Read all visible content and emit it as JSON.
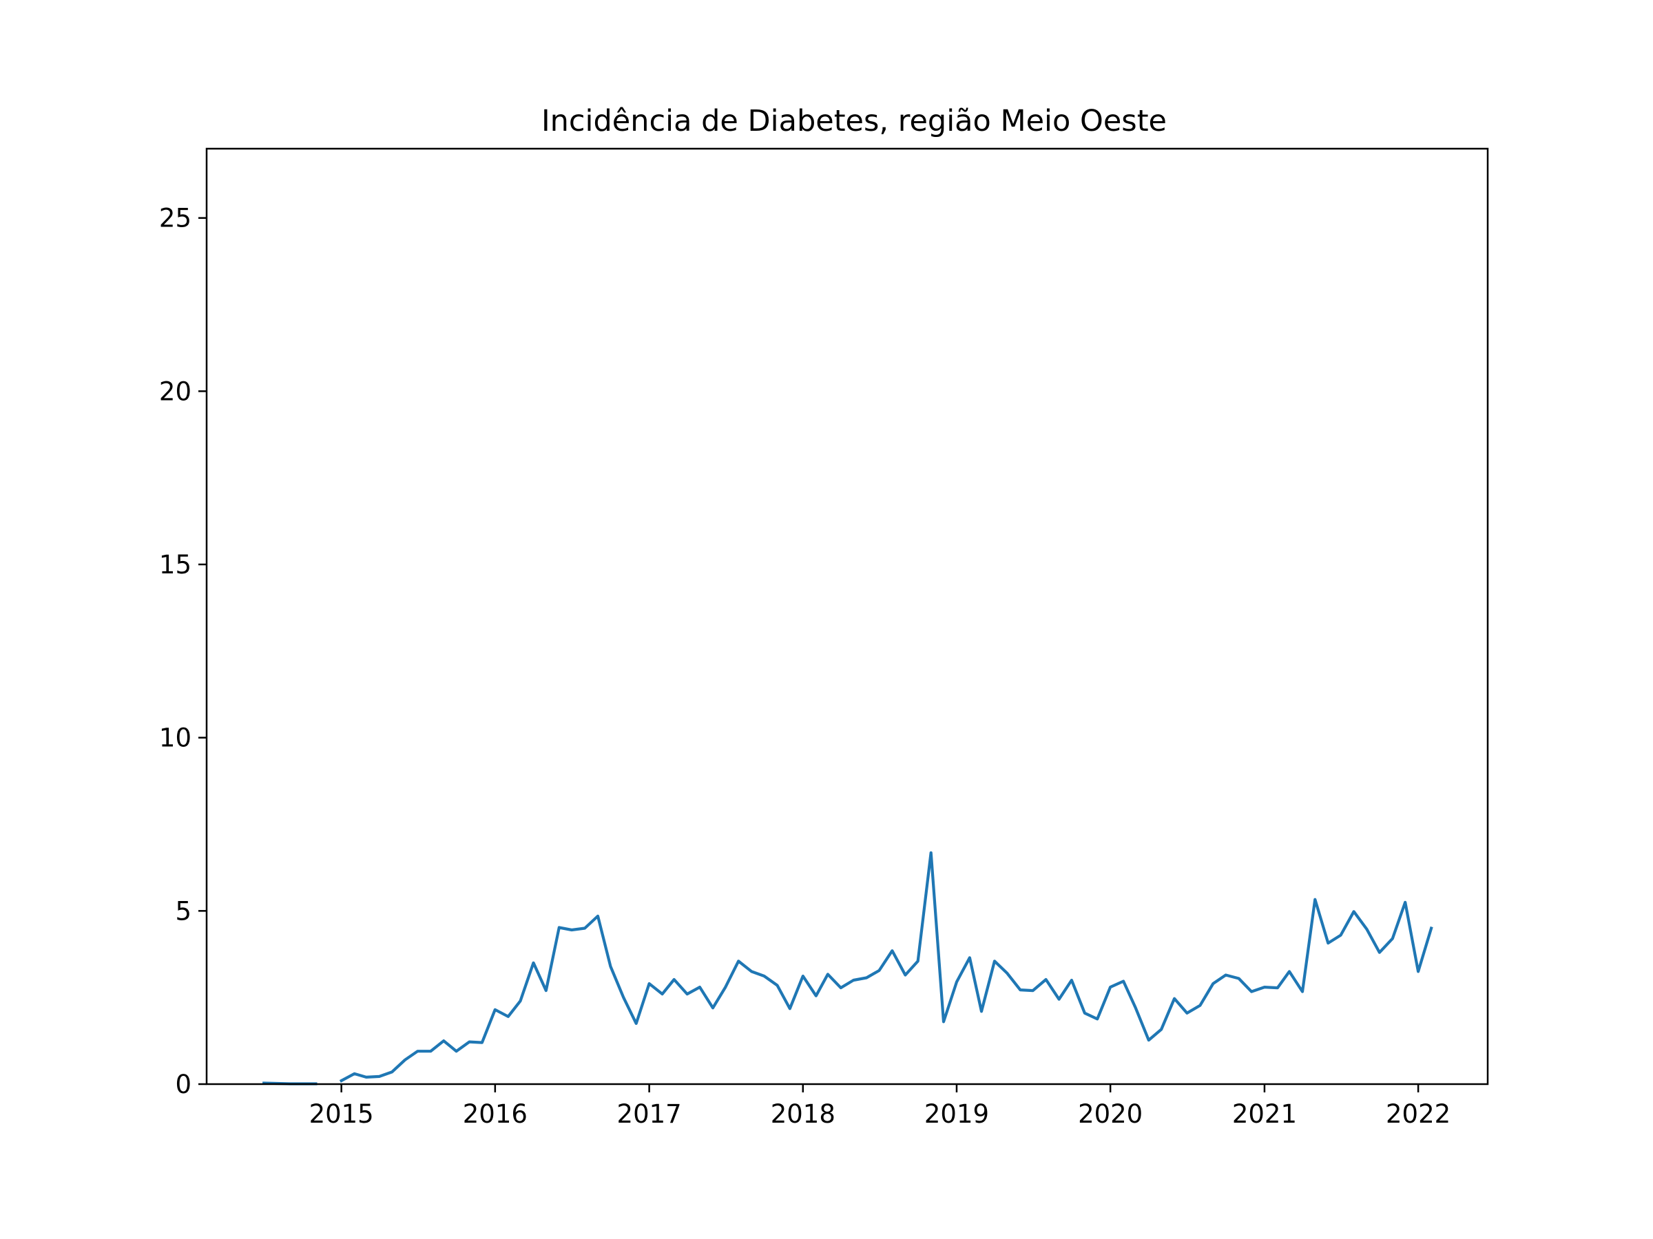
{
  "chart_data": {
    "type": "line",
    "title": "Incidência de Diabetes, região Meio Oeste",
    "xlabel": "",
    "ylabel": "",
    "xlim": [
      "2014-02-15",
      "2022-06-15"
    ],
    "ylim": [
      0,
      27
    ],
    "xticks": [
      "2015",
      "2016",
      "2017",
      "2018",
      "2019",
      "2020",
      "2021",
      "2022"
    ],
    "yticks": [
      0,
      5,
      10,
      15,
      20,
      25
    ],
    "grid": false,
    "line_color": "#1f77b4",
    "series": [
      {
        "segments": [
          [
            [
              "2014-07-01",
              0.03
            ],
            [
              "2014-08-01",
              0.02
            ],
            [
              "2014-09-01",
              0.01
            ],
            [
              "2014-10-01",
              0.01
            ],
            [
              "2014-11-01",
              0.01
            ]
          ],
          [
            [
              "2015-01-01",
              0.1
            ],
            [
              "2015-02-01",
              0.3
            ],
            [
              "2015-03-01",
              0.2
            ],
            [
              "2015-04-01",
              0.22
            ],
            [
              "2015-05-01",
              0.35
            ],
            [
              "2015-06-01",
              0.7
            ],
            [
              "2015-07-01",
              0.95
            ],
            [
              "2015-08-01",
              0.95
            ],
            [
              "2015-09-01",
              1.25
            ],
            [
              "2015-10-01",
              0.95
            ],
            [
              "2015-11-01",
              1.22
            ],
            [
              "2015-12-01",
              1.2
            ],
            [
              "2016-01-01",
              2.15
            ],
            [
              "2016-02-01",
              1.95
            ],
            [
              "2016-03-01",
              2.4
            ],
            [
              "2016-04-01",
              3.5
            ],
            [
              "2016-05-01",
              2.7
            ],
            [
              "2016-06-01",
              4.52
            ],
            [
              "2016-07-01",
              4.45
            ],
            [
              "2016-08-01",
              4.5
            ],
            [
              "2016-09-01",
              4.85
            ],
            [
              "2016-10-01",
              3.4
            ],
            [
              "2016-11-01",
              2.5
            ],
            [
              "2016-12-01",
              1.75
            ],
            [
              "2017-01-01",
              2.9
            ],
            [
              "2017-02-01",
              2.6
            ],
            [
              "2017-03-01",
              3.02
            ],
            [
              "2017-04-01",
              2.6
            ],
            [
              "2017-05-01",
              2.8
            ],
            [
              "2017-06-01",
              2.2
            ],
            [
              "2017-07-01",
              2.8
            ],
            [
              "2017-08-01",
              3.55
            ],
            [
              "2017-09-01",
              3.25
            ],
            [
              "2017-10-01",
              3.12
            ],
            [
              "2017-11-01",
              2.85
            ],
            [
              "2017-12-01",
              2.18
            ],
            [
              "2018-01-01",
              3.12
            ],
            [
              "2018-02-01",
              2.55
            ],
            [
              "2018-03-01",
              3.17
            ],
            [
              "2018-04-01",
              2.78
            ],
            [
              "2018-05-01",
              3.0
            ],
            [
              "2018-06-01",
              3.07
            ],
            [
              "2018-07-01",
              3.28
            ],
            [
              "2018-08-01",
              3.85
            ],
            [
              "2018-09-01",
              3.15
            ],
            [
              "2018-10-01",
              3.55
            ],
            [
              "2018-11-01",
              6.68
            ],
            [
              "2018-12-01",
              1.8
            ],
            [
              "2019-01-01",
              2.95
            ],
            [
              "2019-02-01",
              3.65
            ],
            [
              "2019-03-01",
              2.1
            ],
            [
              "2019-04-01",
              3.55
            ],
            [
              "2019-05-01",
              3.2
            ],
            [
              "2019-06-01",
              2.72
            ],
            [
              "2019-07-01",
              2.7
            ],
            [
              "2019-08-01",
              3.02
            ],
            [
              "2019-09-01",
              2.45
            ],
            [
              "2019-10-01",
              3.0
            ],
            [
              "2019-11-01",
              2.05
            ],
            [
              "2019-12-01",
              1.88
            ],
            [
              "2020-01-01",
              2.8
            ],
            [
              "2020-02-01",
              2.97
            ],
            [
              "2020-03-01",
              2.2
            ],
            [
              "2020-04-01",
              1.27
            ],
            [
              "2020-05-01",
              1.58
            ],
            [
              "2020-06-01",
              2.47
            ],
            [
              "2020-07-01",
              2.05
            ],
            [
              "2020-08-01",
              2.27
            ],
            [
              "2020-09-01",
              2.9
            ],
            [
              "2020-10-01",
              3.15
            ],
            [
              "2020-11-01",
              3.05
            ],
            [
              "2020-12-01",
              2.67
            ],
            [
              "2021-01-01",
              2.8
            ],
            [
              "2021-02-01",
              2.78
            ],
            [
              "2021-03-01",
              3.25
            ],
            [
              "2021-04-01",
              2.67
            ],
            [
              "2021-05-01",
              5.33
            ],
            [
              "2021-06-01",
              4.07
            ],
            [
              "2021-07-01",
              4.3
            ],
            [
              "2021-08-01",
              4.98
            ],
            [
              "2021-09-01",
              4.47
            ],
            [
              "2021-10-01",
              3.8
            ],
            [
              "2021-11-01",
              4.2
            ],
            [
              "2021-12-01",
              5.25
            ],
            [
              "2022-01-01",
              3.25
            ],
            [
              "2022-02-01",
              4.5
            ]
          ]
        ]
      }
    ]
  }
}
